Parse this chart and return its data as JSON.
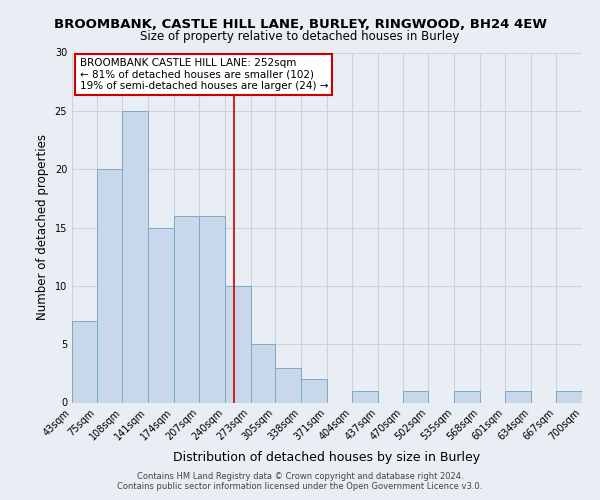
{
  "title": "BROOMBANK, CASTLE HILL LANE, BURLEY, RINGWOOD, BH24 4EW",
  "subtitle": "Size of property relative to detached houses in Burley",
  "xlabel": "Distribution of detached houses by size in Burley",
  "ylabel": "Number of detached properties",
  "footer_line1": "Contains HM Land Registry data © Crown copyright and database right 2024.",
  "footer_line2": "Contains public sector information licensed under the Open Government Licence v3.0.",
  "bar_edges": [
    43,
    75,
    108,
    141,
    174,
    207,
    240,
    273,
    305,
    338,
    371,
    404,
    437,
    470,
    502,
    535,
    568,
    601,
    634,
    667,
    700
  ],
  "bar_heights": [
    7,
    20,
    25,
    15,
    16,
    16,
    10,
    5,
    3,
    2,
    0,
    1,
    0,
    1,
    0,
    1,
    0,
    1,
    0,
    1
  ],
  "bar_color": "#c8d8ea",
  "bar_edge_color": "#7aaac8",
  "reference_line_x": 252,
  "reference_line_color": "#cc0000",
  "annotation_title": "BROOMBANK CASTLE HILL LANE: 252sqm",
  "annotation_line1": "← 81% of detached houses are smaller (102)",
  "annotation_line2": "19% of semi-detached houses are larger (24) →",
  "annotation_box_color": "#ffffff",
  "annotation_box_edge": "#cc0000",
  "ylim": [
    0,
    30
  ],
  "tick_labels": [
    "43sqm",
    "75sqm",
    "108sqm",
    "141sqm",
    "174sqm",
    "207sqm",
    "240sqm",
    "273sqm",
    "305sqm",
    "338sqm",
    "371sqm",
    "404sqm",
    "437sqm",
    "470sqm",
    "502sqm",
    "535sqm",
    "568sqm",
    "601sqm",
    "634sqm",
    "667sqm",
    "700sqm"
  ],
  "background_color": "#e8eef4",
  "grid_color": "#c8d4de",
  "title_fontsize": 9.5,
  "subtitle_fontsize": 8.5,
  "ylabel_fontsize": 8.5,
  "xlabel_fontsize": 9.0,
  "tick_fontsize": 7.0,
  "footer_fontsize": 6.0
}
